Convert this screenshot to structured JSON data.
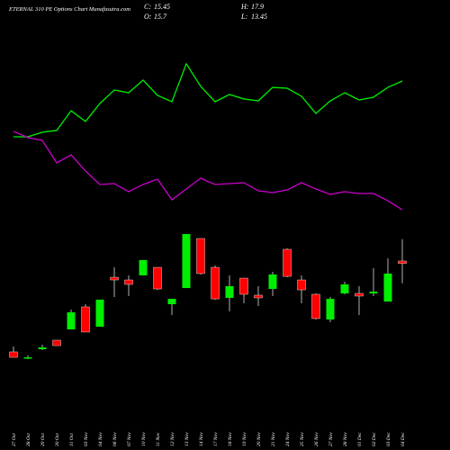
{
  "chart_data": {
    "type": "candlestick",
    "title": "ETERNAL 310 PE Options Chart Munafasutra.com",
    "summary": [
      {
        "label": "C:",
        "value": 15.45
      },
      {
        "label": "H:",
        "value": 17.9
      },
      {
        "label": "O:",
        "value": 15.7
      },
      {
        "label": "L:",
        "value": 13.45
      }
    ],
    "categories": [
      "27 Oct",
      "28 Oct",
      "29 Oct",
      "30 Oct",
      "31 Oct",
      "03 Nov",
      "04 Nov",
      "06 Nov",
      "07 Nov",
      "10 Nov",
      "11 Nov",
      "12 Nov",
      "13 Nov",
      "14 Nov",
      "17 Nov",
      "18 Nov",
      "19 Nov",
      "20 Nov",
      "21 Nov",
      "24 Nov",
      "25 Nov",
      "26 Nov",
      "27 Nov",
      "28 Nov",
      "01 Dec",
      "02 Dec",
      "03 Dec",
      "04 Dec"
    ],
    "open": [
      6.53,
      5.89,
      6.8,
      7.71,
      8.8,
      11.07,
      9.07,
      14.06,
      13.79,
      14.25,
      15.06,
      11.34,
      12.97,
      17.97,
      15.06,
      11.98,
      13.97,
      12.25,
      12.88,
      16.88,
      13.79,
      12.34,
      9.8,
      12.43,
      12.43,
      12.43,
      11.61,
      15.7
    ],
    "high": [
      7.08,
      6.17,
      7.26,
      7.71,
      10.8,
      11.34,
      11.8,
      15.06,
      14.25,
      15.79,
      15.06,
      11.88,
      18.42,
      17.97,
      15.25,
      14.25,
      13.97,
      13.16,
      14.61,
      16.97,
      14.25,
      12.43,
      12.07,
      13.61,
      13.16,
      14.97,
      15.97,
      17.9
    ],
    "low": [
      5.98,
      5.8,
      6.71,
      7.16,
      8.8,
      8.53,
      9.07,
      12.07,
      12.16,
      14.25,
      12.79,
      10.25,
      12.97,
      14.34,
      11.8,
      10.61,
      11.43,
      11.16,
      12.16,
      14.06,
      11.43,
      9.8,
      9.52,
      12.34,
      10.25,
      12.16,
      11.61,
      13.45
    ],
    "close": [
      5.98,
      5.98,
      6.98,
      7.16,
      10.52,
      8.53,
      11.8,
      13.79,
      13.34,
      15.79,
      12.88,
      11.88,
      18.42,
      14.43,
      11.88,
      13.16,
      12.34,
      11.98,
      14.34,
      14.15,
      12.79,
      9.89,
      11.88,
      13.34,
      12.16,
      12.61,
      14.43,
      15.45
    ],
    "up_color": "#00ee00",
    "down_color": "#ff0000",
    "lines": [
      {
        "color": "#00ee00",
        "values": [
          28.23,
          28.23,
          28.69,
          28.87,
          30.86,
          29.78,
          31.59,
          32.95,
          32.68,
          33.95,
          32.41,
          31.77,
          35.59,
          33.32,
          31.77,
          32.5,
          32.05,
          31.86,
          33.22,
          33.13,
          32.32,
          30.59,
          31.86,
          32.68,
          31.95,
          32.23,
          33.22,
          33.86
        ]
      },
      {
        "color": "#cc00cc",
        "values": [
          28.78,
          28.14,
          27.87,
          25.6,
          26.41,
          24.78,
          23.42,
          23.51,
          22.69,
          23.42,
          23.96,
          21.87,
          22.96,
          24.05,
          23.42,
          23.51,
          23.6,
          22.78,
          22.6,
          22.87,
          23.6,
          22.96,
          22.42,
          22.69,
          22.51,
          22.51,
          21.78,
          20.87
        ]
      }
    ]
  }
}
